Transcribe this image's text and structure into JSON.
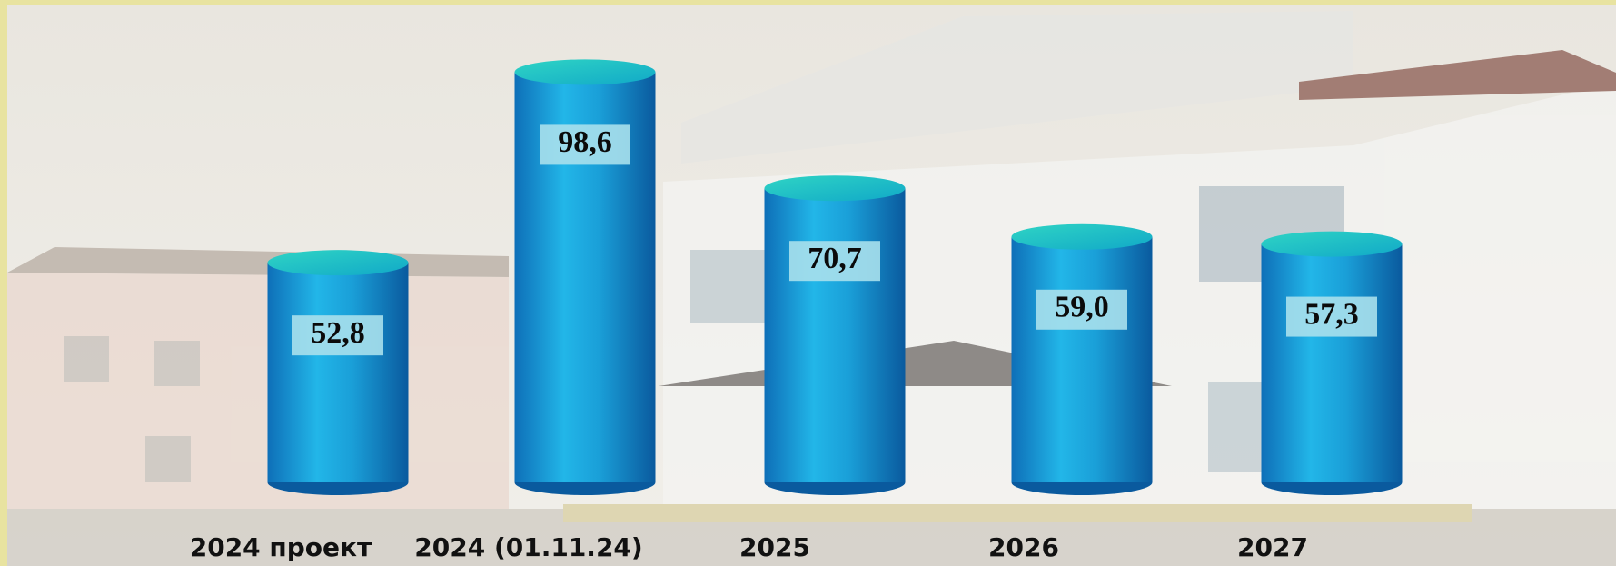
{
  "chart_data": {
    "type": "bar",
    "categories": [
      "2024 проект",
      "2024 (01.11.24)",
      "2025",
      "2026",
      "2027"
    ],
    "values": [
      52.8,
      98.6,
      70.7,
      59.0,
      57.3
    ],
    "value_labels": [
      "52,8",
      "98,6",
      "70,7",
      "59,0",
      "57,3"
    ],
    "color": "#1a9fd8"
  }
}
